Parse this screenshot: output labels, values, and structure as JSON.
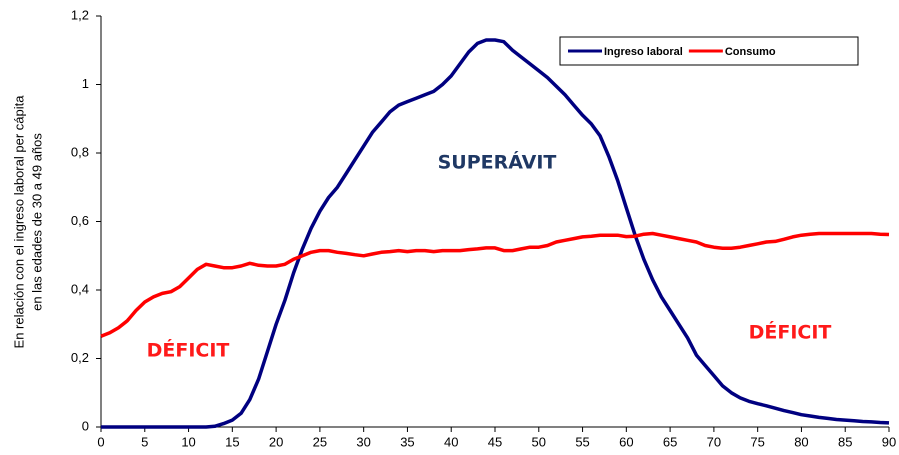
{
  "chart_data": {
    "type": "line",
    "ylabel": [
      "En relación con el ingreso laboral per cápita",
      "en las edades de 30 a 49 años"
    ],
    "annotations": [
      {
        "text": "SUPERÁVIT",
        "color": "#1f3864"
      },
      {
        "text": "DÉFICIT",
        "color": "#ff1a1a"
      },
      {
        "text": "DÉFICIT",
        "color": "#ff1a1a"
      }
    ],
    "x": [
      0,
      1,
      2,
      3,
      4,
      5,
      6,
      7,
      8,
      9,
      10,
      11,
      12,
      13,
      14,
      15,
      16,
      17,
      18,
      19,
      20,
      21,
      22,
      23,
      24,
      25,
      26,
      27,
      28,
      29,
      30,
      31,
      32,
      33,
      34,
      35,
      36,
      37,
      38,
      39,
      40,
      41,
      42,
      43,
      44,
      45,
      46,
      47,
      48,
      49,
      50,
      51,
      52,
      53,
      54,
      55,
      56,
      57,
      58,
      59,
      60,
      61,
      62,
      63,
      64,
      65,
      66,
      67,
      68,
      69,
      70,
      71,
      72,
      73,
      74,
      75,
      76,
      77,
      78,
      79,
      80,
      81,
      82,
      83,
      84,
      85,
      86,
      87,
      88,
      89,
      90
    ],
    "series": [
      {
        "name": "Ingreso laboral",
        "color": "#000080",
        "values": [
          0,
          0,
          0,
          0,
          0,
          0,
          0,
          0,
          0,
          0,
          0,
          0,
          0,
          0.002,
          0.01,
          0.02,
          0.04,
          0.08,
          0.14,
          0.22,
          0.3,
          0.37,
          0.45,
          0.52,
          0.58,
          0.63,
          0.67,
          0.7,
          0.74,
          0.78,
          0.82,
          0.86,
          0.89,
          0.92,
          0.94,
          0.95,
          0.96,
          0.97,
          0.98,
          1.0,
          1.025,
          1.06,
          1.095,
          1.12,
          1.13,
          1.13,
          1.125,
          1.1,
          1.08,
          1.06,
          1.04,
          1.02,
          0.995,
          0.97,
          0.94,
          0.91,
          0.885,
          0.85,
          0.79,
          0.72,
          0.64,
          0.56,
          0.49,
          0.43,
          0.38,
          0.34,
          0.3,
          0.26,
          0.21,
          0.18,
          0.15,
          0.12,
          0.1,
          0.085,
          0.075,
          0.068,
          0.062,
          0.055,
          0.048,
          0.042,
          0.036,
          0.032,
          0.028,
          0.025,
          0.022,
          0.02,
          0.018,
          0.016,
          0.015,
          0.013,
          0.012
        ]
      },
      {
        "name": "Consumo",
        "color": "#ff0000",
        "values": [
          0.265,
          0.275,
          0.29,
          0.31,
          0.34,
          0.365,
          0.38,
          0.39,
          0.395,
          0.41,
          0.435,
          0.46,
          0.475,
          0.47,
          0.465,
          0.465,
          0.47,
          0.478,
          0.472,
          0.47,
          0.47,
          0.475,
          0.49,
          0.5,
          0.51,
          0.515,
          0.515,
          0.51,
          0.507,
          0.503,
          0.5,
          0.505,
          0.51,
          0.512,
          0.515,
          0.512,
          0.515,
          0.515,
          0.512,
          0.515,
          0.515,
          0.515,
          0.518,
          0.52,
          0.523,
          0.523,
          0.515,
          0.515,
          0.52,
          0.525,
          0.525,
          0.53,
          0.54,
          0.545,
          0.55,
          0.555,
          0.557,
          0.56,
          0.56,
          0.56,
          0.556,
          0.557,
          0.563,
          0.565,
          0.56,
          0.555,
          0.55,
          0.545,
          0.54,
          0.53,
          0.525,
          0.522,
          0.522,
          0.525,
          0.53,
          0.535,
          0.54,
          0.542,
          0.548,
          0.555,
          0.56,
          0.563,
          0.565,
          0.565,
          0.565,
          0.565,
          0.565,
          0.565,
          0.565,
          0.563,
          0.562
        ]
      }
    ],
    "xlim": [
      0,
      90
    ],
    "xticks": [
      0,
      5,
      10,
      15,
      20,
      25,
      30,
      35,
      40,
      45,
      50,
      55,
      60,
      65,
      70,
      75,
      80,
      85,
      90
    ],
    "ylim": [
      0,
      1.2
    ],
    "yticks": [
      0,
      {
        "value": 0.2,
        "label": "0,2"
      },
      {
        "value": 0.4,
        "label": "0,4"
      },
      {
        "value": 0.6,
        "label": "0,6"
      },
      {
        "value": 0.8,
        "label": "0,8"
      },
      1,
      {
        "value": 1.2,
        "label": "1,2"
      }
    ],
    "grid": false,
    "legend": "upper right"
  }
}
